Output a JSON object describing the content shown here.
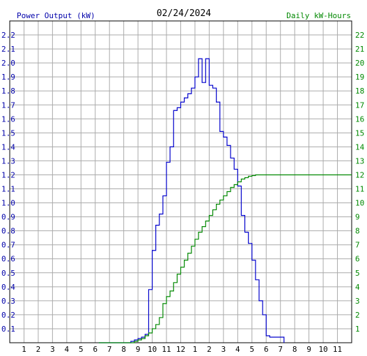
{
  "header": {
    "left_label": "Power Output (kW)",
    "date": "02/24/2024",
    "right_label": "Daily kW-Hours"
  },
  "colors": {
    "power": "#0000cc",
    "energy": "#008800",
    "grid": "#aaaaaa",
    "axis": "#000000",
    "left_text": "#0000aa",
    "right_text": "#008800"
  },
  "chart_data": {
    "type": "line",
    "title": "02/24/2024",
    "ylabel_left": "Power Output (kW)",
    "ylabel_right": "Daily kW-Hours",
    "x_ticks": [
      "1",
      "2",
      "3",
      "4",
      "5",
      "6",
      "7",
      "8",
      "9",
      "10",
      "11",
      "12",
      "1",
      "2",
      "3",
      "4",
      "5",
      "6",
      "7",
      "8",
      "9",
      "10",
      "11"
    ],
    "y_left_ticks": [
      "0.1",
      "0.2",
      "0.3",
      "0.4",
      "0.5",
      "0.6",
      "0.7",
      "0.8",
      "0.9",
      "1.0",
      "1.1",
      "1.2",
      "1.3",
      "1.4",
      "1.5",
      "1.6",
      "1.7",
      "1.8",
      "1.9",
      "2.0",
      "2.1",
      "2.2"
    ],
    "y_right_ticks": [
      "1",
      "2",
      "3",
      "4",
      "5",
      "6",
      "7",
      "8",
      "9",
      "10",
      "11",
      "12",
      "13",
      "14",
      "15",
      "16",
      "17",
      "18",
      "19",
      "20",
      "21",
      "22"
    ],
    "xlim": [
      0,
      24
    ],
    "ylim_left": [
      0,
      2.3
    ],
    "ylim_right": [
      0,
      23
    ],
    "grid": true,
    "series": [
      {
        "name": "Power Output (kW)",
        "axis": "left",
        "x": [
          6.25,
          6.5,
          6.75,
          7.0,
          7.25,
          7.5,
          7.75,
          8.0,
          8.25,
          8.5,
          8.75,
          9.0,
          9.25,
          9.5,
          9.75,
          10.0,
          10.25,
          10.5,
          10.75,
          11.0,
          11.25,
          11.5,
          11.75,
          12.0,
          12.25,
          12.5,
          12.75,
          13.0,
          13.25,
          13.5,
          13.75,
          14.0,
          14.25,
          14.5,
          14.75,
          15.0,
          15.25,
          15.5,
          15.75,
          16.0,
          16.25,
          16.5,
          16.75,
          17.0,
          17.25,
          17.5,
          17.75,
          18.0,
          18.25,
          18.5,
          18.75,
          19.0,
          19.25
        ],
        "y": [
          0.0,
          0.0,
          0.0,
          0.0,
          0.0,
          0.0,
          0.0,
          0.0,
          0.0,
          0.01,
          0.02,
          0.03,
          0.04,
          0.06,
          0.38,
          0.66,
          0.84,
          0.92,
          1.05,
          1.29,
          1.4,
          1.66,
          1.68,
          1.72,
          1.75,
          1.78,
          1.82,
          1.9,
          2.03,
          1.86,
          2.03,
          1.84,
          1.82,
          1.72,
          1.51,
          1.47,
          1.41,
          1.32,
          1.24,
          1.12,
          0.91,
          0.79,
          0.71,
          0.59,
          0.45,
          0.3,
          0.2,
          0.05,
          0.04,
          0.04,
          0.04,
          0.04,
          0.0
        ]
      },
      {
        "name": "Daily kW-Hours",
        "axis": "right",
        "x": [
          6.25,
          6.5,
          6.75,
          7.0,
          7.25,
          7.5,
          7.75,
          8.0,
          8.25,
          8.5,
          8.75,
          9.0,
          9.25,
          9.5,
          9.75,
          10.0,
          10.25,
          10.5,
          10.75,
          11.0,
          11.25,
          11.5,
          11.75,
          12.0,
          12.25,
          12.5,
          12.75,
          13.0,
          13.25,
          13.5,
          13.75,
          14.0,
          14.25,
          14.5,
          14.75,
          15.0,
          15.25,
          15.5,
          15.75,
          16.0,
          16.25,
          16.5,
          16.75,
          17.0,
          17.25,
          17.5,
          17.75,
          18.0,
          18.25,
          18.5,
          18.75,
          19.0,
          19.25,
          24.0
        ],
        "y": [
          0.0,
          0.0,
          0.0,
          0.0,
          0.0,
          0.0,
          0.0,
          0.0,
          0.0,
          0.0,
          0.1,
          0.2,
          0.3,
          0.5,
          0.7,
          1.0,
          1.3,
          1.8,
          2.8,
          3.3,
          3.7,
          4.3,
          4.9,
          5.4,
          5.9,
          6.4,
          6.9,
          7.4,
          7.9,
          8.3,
          8.7,
          9.1,
          9.5,
          9.9,
          10.2,
          10.5,
          10.8,
          11.1,
          11.3,
          11.5,
          11.7,
          11.8,
          11.9,
          11.95,
          12.0,
          12.0,
          12.0,
          12.0,
          12.0,
          12.0,
          12.0,
          12.0,
          12.0,
          12.0
        ]
      }
    ]
  }
}
